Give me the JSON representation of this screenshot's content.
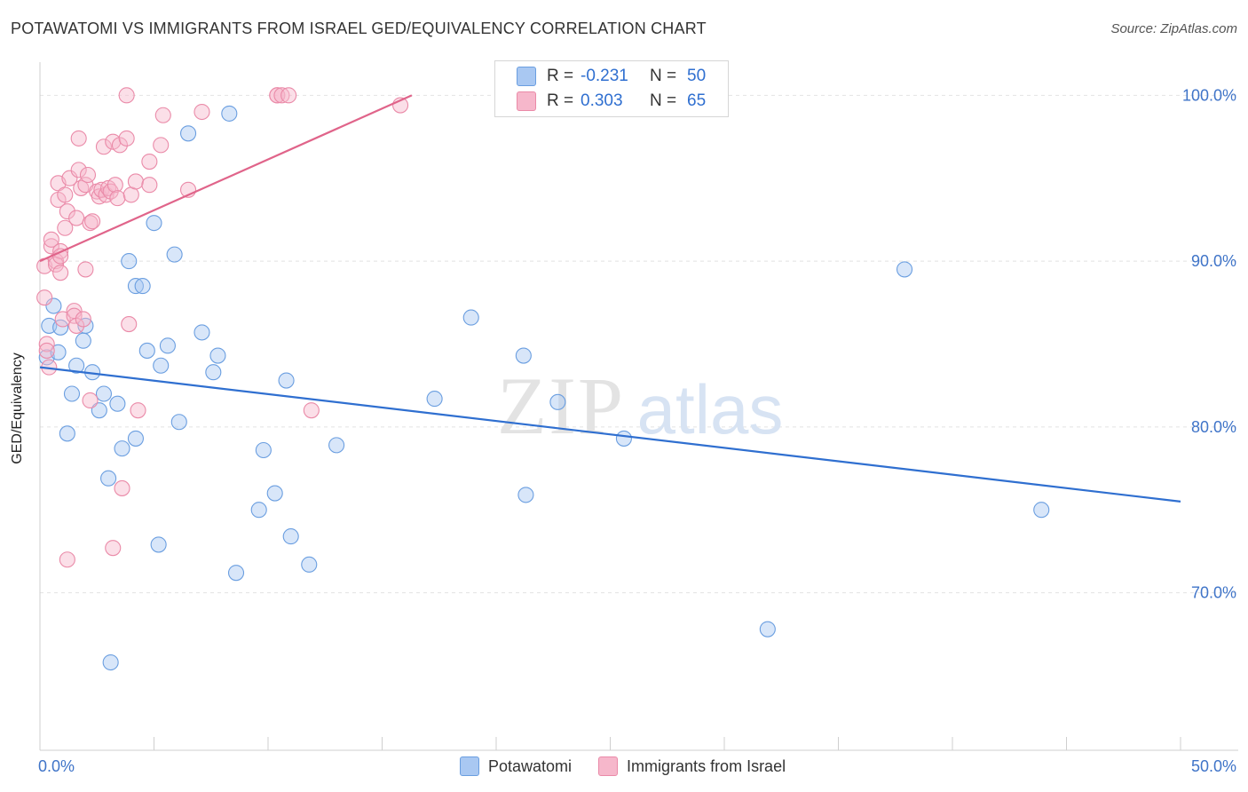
{
  "header": {
    "title": "POTAWATOMI VS IMMIGRANTS FROM ISRAEL GED/EQUIVALENCY CORRELATION CHART",
    "source": "Source: ZipAtlas.com"
  },
  "watermark": {
    "zip": "ZIP",
    "atlas": "atlas"
  },
  "legend": {
    "rows": [
      {
        "r_label": "R =",
        "r_value": "-0.231",
        "n_label": "N =",
        "n_value": "50",
        "color": "#a9c8f2"
      },
      {
        "r_label": "R =",
        "r_value": "0.303",
        "n_label": "N =",
        "n_value": "65",
        "color": "#f6b7cb"
      }
    ]
  },
  "bottom_legend": {
    "items": [
      {
        "label": "Potawatomi",
        "color": "#a9c8f2"
      },
      {
        "label": "Immigrants from Israel",
        "color": "#f6b7cb"
      }
    ]
  },
  "chart_data": {
    "type": "scatter",
    "title": "POTAWATOMI VS IMMIGRANTS FROM ISRAEL GED/EQUIVALENCY CORRELATION CHART",
    "xlabel": "",
    "ylabel": "GED/Equivalency",
    "xlim": [
      0,
      50
    ],
    "ylim": [
      60.5,
      102
    ],
    "x_tick_labels": [
      "0.0%",
      "50.0%"
    ],
    "y_ticks": [
      70,
      80,
      90,
      100
    ],
    "y_tick_labels": [
      "70.0%",
      "80.0%",
      "90.0%",
      "100.0%"
    ],
    "grid": true,
    "legend_position": "top-center",
    "series": [
      {
        "name": "Potawatomi",
        "color": "#a9c8f2",
        "stroke": "#6a9ee0",
        "trend_color": "#2f6fd0",
        "trend": {
          "x": [
            0,
            50
          ],
          "y": [
            83.6,
            75.5
          ]
        },
        "points": [
          [
            0.3,
            84.2
          ],
          [
            0.4,
            86.1
          ],
          [
            0.6,
            87.3
          ],
          [
            0.8,
            84.5
          ],
          [
            0.9,
            86.0
          ],
          [
            1.2,
            79.6
          ],
          [
            1.4,
            82.0
          ],
          [
            1.6,
            83.7
          ],
          [
            1.9,
            85.2
          ],
          [
            2.0,
            86.1
          ],
          [
            2.3,
            83.3
          ],
          [
            2.6,
            81.0
          ],
          [
            2.8,
            82.0
          ],
          [
            3.0,
            76.9
          ],
          [
            3.1,
            65.8
          ],
          [
            3.4,
            81.4
          ],
          [
            3.6,
            78.7
          ],
          [
            3.9,
            90.0
          ],
          [
            4.2,
            88.5
          ],
          [
            4.2,
            79.3
          ],
          [
            4.5,
            88.5
          ],
          [
            4.7,
            84.6
          ],
          [
            5.0,
            92.3
          ],
          [
            5.2,
            72.9
          ],
          [
            5.3,
            83.7
          ],
          [
            5.6,
            84.9
          ],
          [
            5.9,
            90.4
          ],
          [
            6.1,
            80.3
          ],
          [
            6.5,
            97.7
          ],
          [
            7.1,
            85.7
          ],
          [
            7.6,
            83.3
          ],
          [
            7.8,
            84.3
          ],
          [
            8.3,
            98.9
          ],
          [
            8.6,
            71.2
          ],
          [
            9.6,
            75.0
          ],
          [
            9.8,
            78.6
          ],
          [
            10.3,
            76.0
          ],
          [
            10.8,
            82.8
          ],
          [
            11.0,
            73.4
          ],
          [
            11.8,
            71.7
          ],
          [
            13.0,
            78.9
          ],
          [
            17.3,
            81.7
          ],
          [
            18.9,
            86.6
          ],
          [
            21.2,
            84.3
          ],
          [
            21.3,
            75.9
          ],
          [
            22.7,
            81.5
          ],
          [
            25.6,
            79.3
          ],
          [
            31.9,
            67.8
          ],
          [
            37.9,
            89.5
          ],
          [
            43.9,
            75.0
          ]
        ]
      },
      {
        "name": "Immigrants from Israel",
        "color": "#f6b7cb",
        "stroke": "#ea8aa8",
        "trend_color": "#e0648a",
        "trend": {
          "x": [
            0,
            16.3
          ],
          "y": [
            90.0,
            100.0
          ]
        },
        "points": [
          [
            0.2,
            87.8
          ],
          [
            0.2,
            89.7
          ],
          [
            0.3,
            85.0
          ],
          [
            0.3,
            84.6
          ],
          [
            0.4,
            83.6
          ],
          [
            0.5,
            90.9
          ],
          [
            0.5,
            91.3
          ],
          [
            0.7,
            90.0
          ],
          [
            0.7,
            89.8
          ],
          [
            0.9,
            90.6
          ],
          [
            0.8,
            93.7
          ],
          [
            0.8,
            94.7
          ],
          [
            0.9,
            90.3
          ],
          [
            0.9,
            89.3
          ],
          [
            1.0,
            86.5
          ],
          [
            1.1,
            94.0
          ],
          [
            1.1,
            92.0
          ],
          [
            1.2,
            93.0
          ],
          [
            1.2,
            72.0
          ],
          [
            1.3,
            95.0
          ],
          [
            1.5,
            87.0
          ],
          [
            1.5,
            86.7
          ],
          [
            1.6,
            92.6
          ],
          [
            1.6,
            86.1
          ],
          [
            1.7,
            95.5
          ],
          [
            1.7,
            97.4
          ],
          [
            1.8,
            94.4
          ],
          [
            1.9,
            86.5
          ],
          [
            2.0,
            94.6
          ],
          [
            2.0,
            89.5
          ],
          [
            2.1,
            95.2
          ],
          [
            2.2,
            92.3
          ],
          [
            2.2,
            81.6
          ],
          [
            2.3,
            92.4
          ],
          [
            2.5,
            94.2
          ],
          [
            2.6,
            93.9
          ],
          [
            2.7,
            94.3
          ],
          [
            2.8,
            96.9
          ],
          [
            2.9,
            94.0
          ],
          [
            3.0,
            94.4
          ],
          [
            3.1,
            94.2
          ],
          [
            3.2,
            97.2
          ],
          [
            3.2,
            72.7
          ],
          [
            3.3,
            94.6
          ],
          [
            3.4,
            93.8
          ],
          [
            3.5,
            97.0
          ],
          [
            3.6,
            76.3
          ],
          [
            3.8,
            97.4
          ],
          [
            3.8,
            100.0
          ],
          [
            3.9,
            86.2
          ],
          [
            4.0,
            94.0
          ],
          [
            4.2,
            94.8
          ],
          [
            4.3,
            81.0
          ],
          [
            4.8,
            96.0
          ],
          [
            4.8,
            94.6
          ],
          [
            5.3,
            97.0
          ],
          [
            5.4,
            98.8
          ],
          [
            6.5,
            94.3
          ],
          [
            7.1,
            99.0
          ],
          [
            10.4,
            100.0
          ],
          [
            10.4,
            100.0
          ],
          [
            10.6,
            100.0
          ],
          [
            10.9,
            100.0
          ],
          [
            11.9,
            81.0
          ],
          [
            15.8,
            99.4
          ]
        ]
      }
    ]
  }
}
